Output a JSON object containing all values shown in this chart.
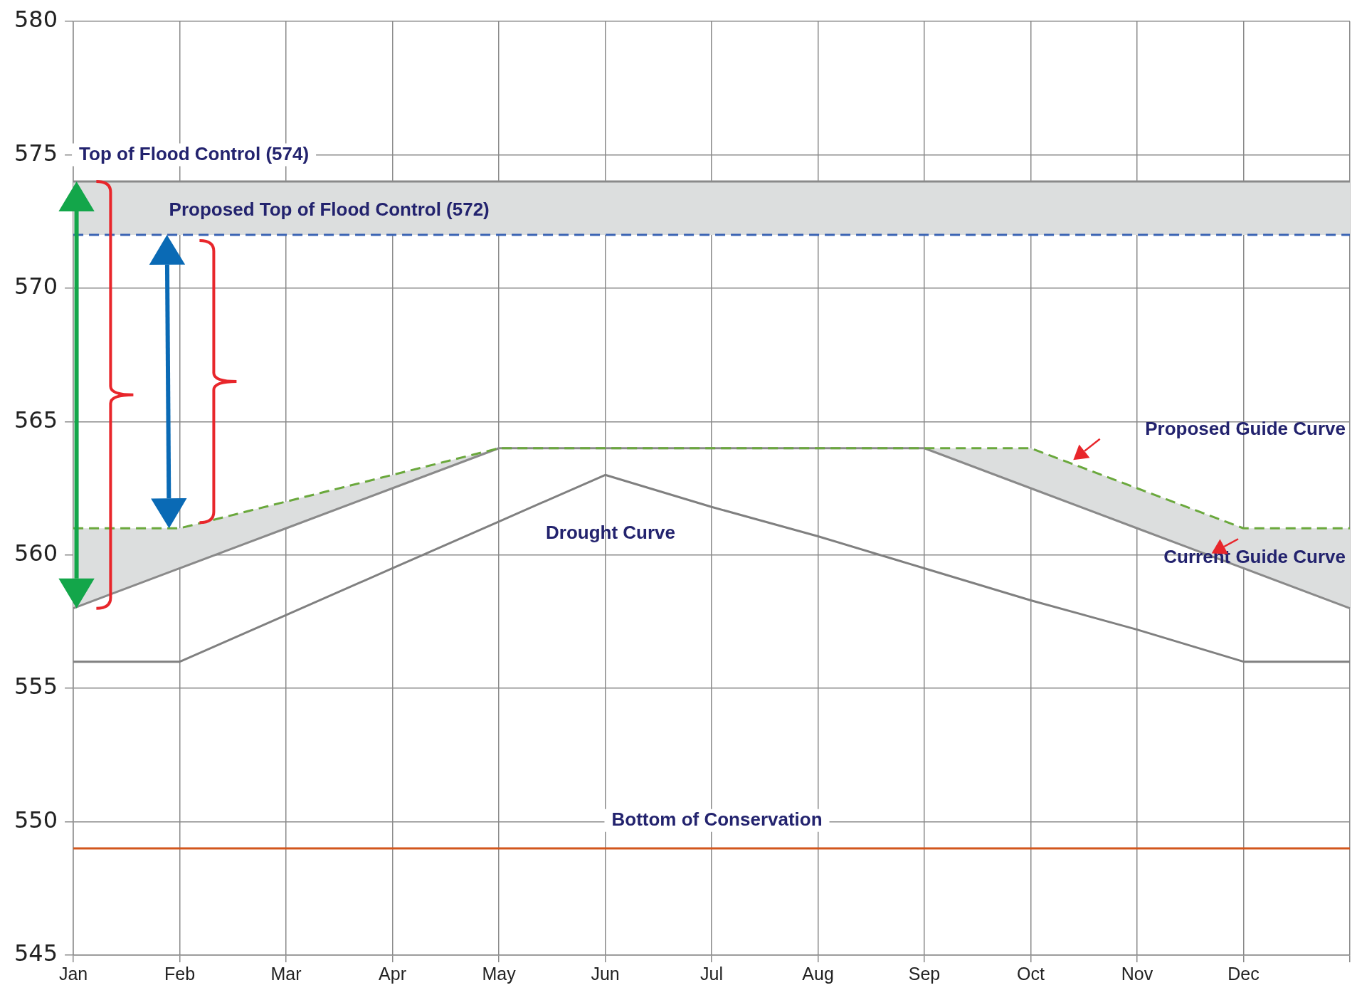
{
  "chart_data": {
    "type": "line",
    "categories": [
      "Jan",
      "Feb",
      "Mar",
      "Apr",
      "May",
      "Jun",
      "Jul",
      "Aug",
      "Sep",
      "Oct",
      "Nov",
      "Dec",
      null
    ],
    "series": [
      {
        "name": "Current Guide Curve",
        "color": "#8a8a8a",
        "values": [
          558,
          559.5,
          561,
          562.5,
          564,
          564,
          564,
          564,
          564,
          562.5,
          561,
          559.5,
          558
        ]
      },
      {
        "name": "Proposed Guide Curve",
        "color": "#6aa83c",
        "line_style": "dashed",
        "values": [
          561,
          561,
          562,
          563,
          564,
          564,
          564,
          564,
          564,
          564,
          562.5,
          561,
          561
        ]
      },
      {
        "name": "Drought Curve",
        "color": "#808080",
        "values": [
          556,
          556,
          557.75,
          559.5,
          561.25,
          563,
          561.8,
          560.7,
          559.5,
          558.3,
          557.2,
          556,
          556
        ]
      }
    ],
    "ylim": [
      545,
      580
    ],
    "yticks": [
      545,
      550,
      555,
      560,
      565,
      570,
      575,
      580
    ],
    "ref_lines": [
      {
        "axis": "y",
        "value": 574,
        "label": "Top of Flood Control (574)",
        "color": "#8a8a8a"
      },
      {
        "axis": "y",
        "value": 572,
        "label": "Proposed Top of Flood Control (572)",
        "color": "#3b64b4",
        "line_style": "dashed"
      },
      {
        "axis": "y",
        "value": 549,
        "label": "Bottom of Conservation",
        "color": "#d2561c"
      }
    ],
    "bands": [
      {
        "axis": "y",
        "from": 572,
        "to": 574,
        "color": "#dcdede"
      }
    ],
    "grid": true,
    "legend": false,
    "marker": "none"
  }
}
